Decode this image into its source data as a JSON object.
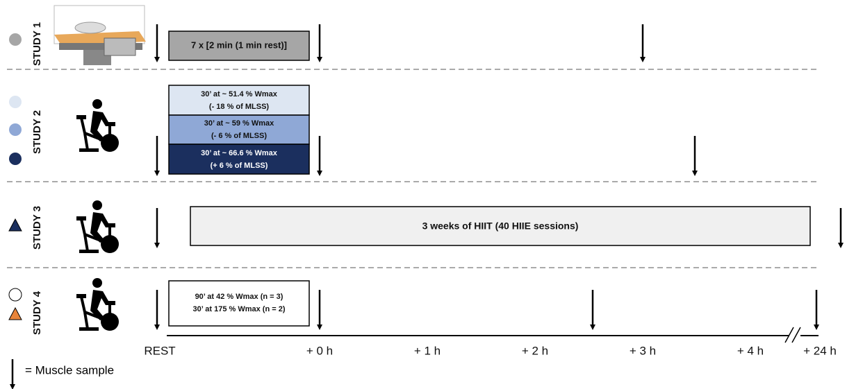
{
  "studies": [
    {
      "label": "STUDY 1",
      "protocol": [
        "7 x [2 min (1 min rest)]"
      ]
    },
    {
      "label": "STUDY 2",
      "protocols": [
        [
          "30’ at ~ 51.4 % Wmax",
          "(- 18 % of MLSS)"
        ],
        [
          "30’ at ~ 59 % Wmax",
          "(- 6 % of MLSS)"
        ],
        [
          "30’ at ~ 66.6 % Wmax",
          "(+ 6 % of MLSS)"
        ]
      ]
    },
    {
      "label": "STUDY 3",
      "protocol": [
        "3 weeks of HIIT (40 HIIE sessions)"
      ]
    },
    {
      "label": "STUDY 4",
      "protocol": [
        "90’ at 42 % Wmax (n = 3)",
        "30’ at 175 % Wmax (n = 2)"
      ]
    }
  ],
  "timeline": [
    "REST",
    "+ 0 h",
    "+ 1 h",
    "+ 2 h",
    "+ 3 h",
    "+ 4 h",
    "+ 24 h"
  ],
  "legend": "= Muscle sample"
}
